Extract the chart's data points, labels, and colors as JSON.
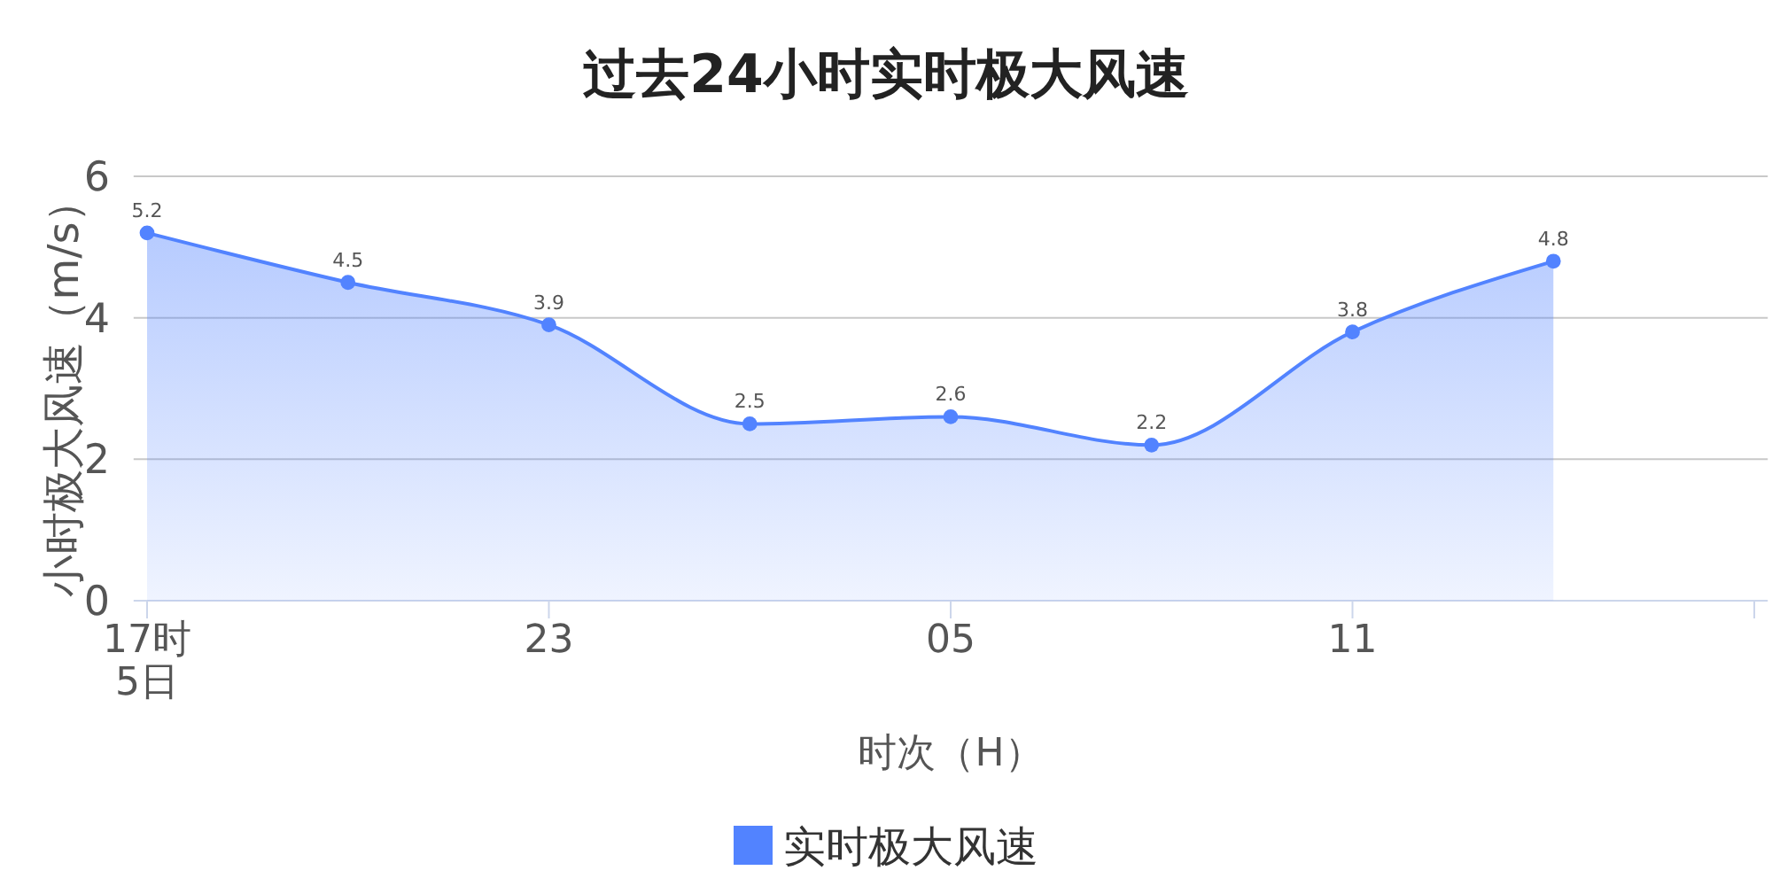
{
  "chart_data": {
    "type": "area",
    "title": "过去24小时实时极大风速",
    "xlabel": "时次（H）",
    "ylabel": "小时极大风速（m/s）",
    "categories": [
      "17时\n5日",
      null,
      "23",
      null,
      "05",
      null,
      "11",
      null,
      null
    ],
    "ylim": [
      0,
      6
    ],
    "yticks": [
      0,
      2,
      4,
      6
    ],
    "series": [
      {
        "name": "实时极大风速",
        "color": "#5283ff",
        "values": [
          5.2,
          4.5,
          3.9,
          2.5,
          2.6,
          2.2,
          3.8,
          4.8,
          null
        ]
      }
    ],
    "data_labels": true,
    "grid": "y",
    "legend": "bottom",
    "marker": "circle",
    "line_style": "solid"
  }
}
